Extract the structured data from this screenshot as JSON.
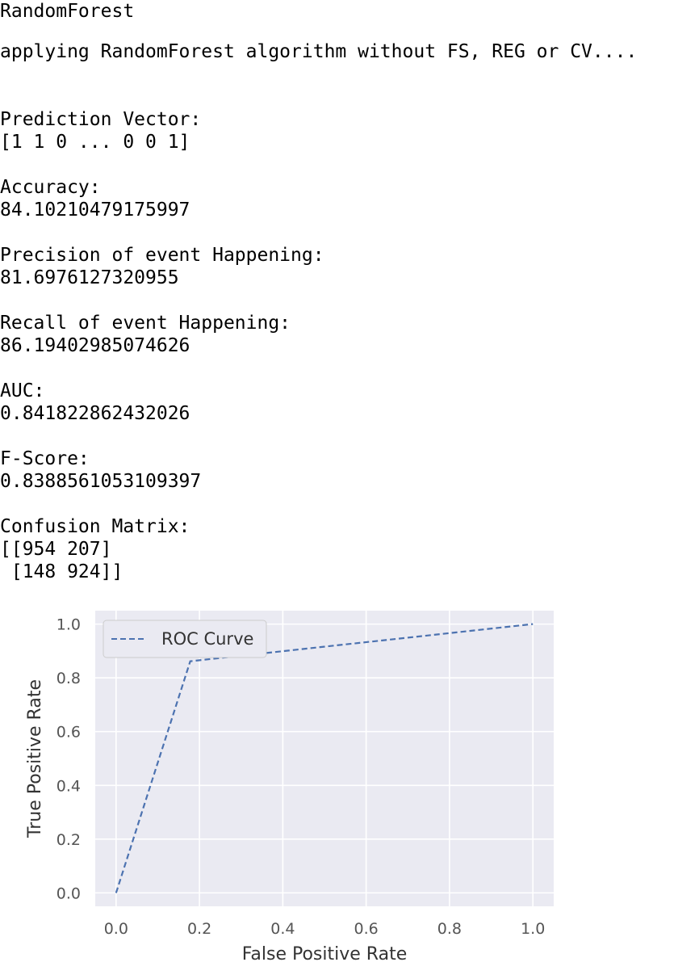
{
  "output": {
    "model_name": "RandomForest",
    "applying_line": "applying RandomForest algorithm without FS, REG or CV....",
    "prediction_label": "Prediction Vector:",
    "prediction_value": "[1 1 0 ... 0 0 1]",
    "accuracy_label": "Accuracy:",
    "accuracy_value": "84.10210479175997",
    "precision_label": "Precision of event Happening:",
    "precision_value": "81.6976127320955",
    "recall_label": "Recall of event Happening:",
    "recall_value": "86.19402985074626",
    "auc_label": "AUC:",
    "auc_value": "0.841822862432026",
    "fscore_label": "F-Score:",
    "fscore_value": "0.8388561053109397",
    "confusion_label": "Confusion Matrix:",
    "confusion_row1": "[[954 207]",
    "confusion_row2": " [148 924]]"
  },
  "chart_data": {
    "type": "line",
    "xlabel": "False Positive Rate",
    "ylabel": "True Positive Rate",
    "xlim": [
      -0.05,
      1.05
    ],
    "ylim": [
      -0.05,
      1.05
    ],
    "x_ticks": [
      "0.0",
      "0.2",
      "0.4",
      "0.6",
      "0.8",
      "1.0"
    ],
    "y_ticks": [
      "0.0",
      "0.2",
      "0.4",
      "0.6",
      "0.8",
      "1.0"
    ],
    "grid": true,
    "legend": "upper-left",
    "series": [
      {
        "name": "ROC Curve",
        "style": "dashed",
        "color": "#4c72b0",
        "x": [
          0.0,
          0.178,
          1.0
        ],
        "y": [
          0.0,
          0.862,
          1.0
        ]
      }
    ]
  }
}
